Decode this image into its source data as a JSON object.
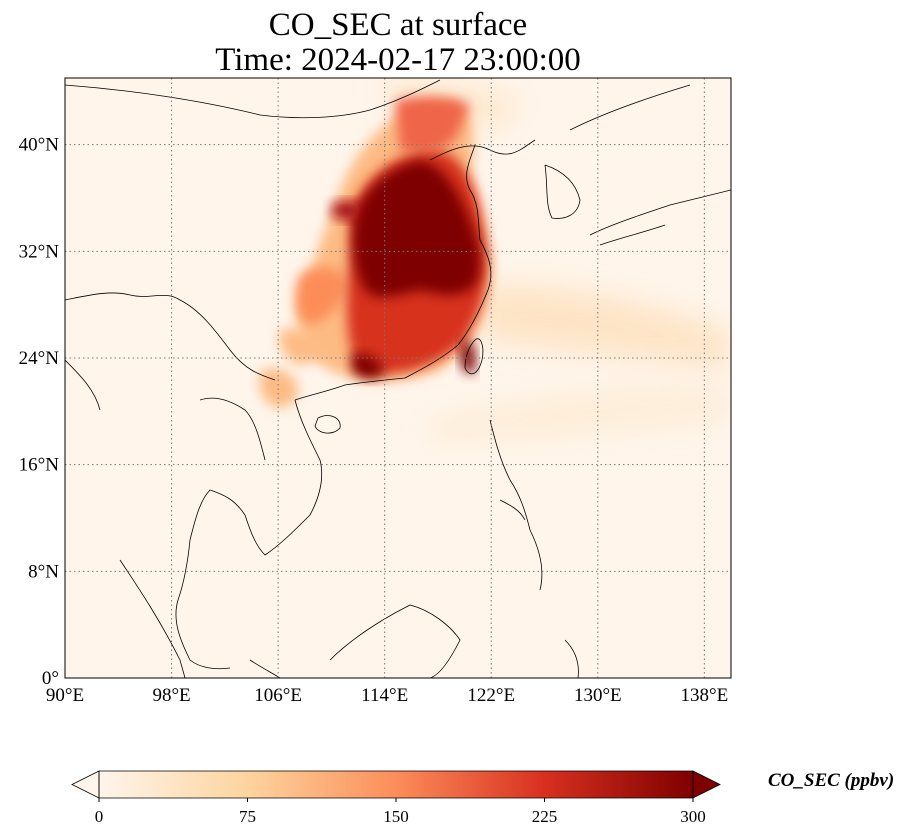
{
  "title": {
    "line1": "CO_SEC at surface",
    "line2": "Time: 2024-02-17 23:00:00"
  },
  "map": {
    "projection": "PlateCarree",
    "lon_range": [
      90,
      140
    ],
    "lat_range": [
      0,
      45
    ],
    "lon_ticks": [
      {
        "value": 90,
        "label": "90°E"
      },
      {
        "value": 98,
        "label": "98°E"
      },
      {
        "value": 106,
        "label": "106°E"
      },
      {
        "value": 114,
        "label": "114°E"
      },
      {
        "value": 122,
        "label": "122°E"
      },
      {
        "value": 130,
        "label": "130°E"
      },
      {
        "value": 138,
        "label": "138°E"
      }
    ],
    "lat_ticks": [
      {
        "value": 0,
        "label": "0°"
      },
      {
        "value": 8,
        "label": "8°N"
      },
      {
        "value": 16,
        "label": "16°N"
      },
      {
        "value": 24,
        "label": "24°N"
      },
      {
        "value": 32,
        "label": "32°N"
      },
      {
        "value": 40,
        "label": "40°N"
      }
    ],
    "gridlines": "dotted",
    "background_color": "#fff5eb",
    "coastline_color": "#000000"
  },
  "colorbar": {
    "label": "CO_SEC (ppbv)",
    "colormap": "OrRd",
    "range": [
      0,
      300
    ],
    "extend": "both",
    "ticks": [
      {
        "value": 0,
        "label": "0"
      },
      {
        "value": 75,
        "label": "75"
      },
      {
        "value": 150,
        "label": "150"
      },
      {
        "value": 225,
        "label": "225"
      },
      {
        "value": 300,
        "label": "300"
      }
    ],
    "colors": [
      "#fff5eb",
      "#fdd49e",
      "#fc8d59",
      "#d7301f",
      "#7f0000"
    ]
  }
}
